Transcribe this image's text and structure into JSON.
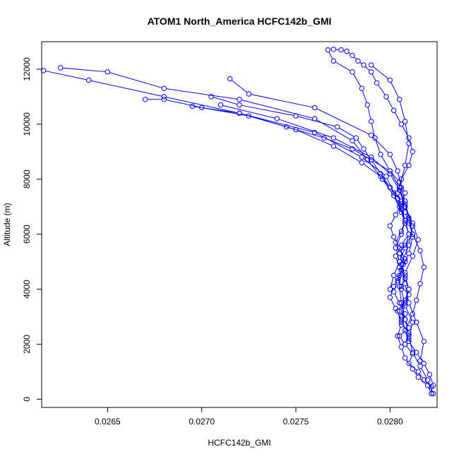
{
  "chart_data": {
    "type": "line",
    "title": "ATOM1 North_America HCFC142b_GMI",
    "xlabel": "HCFC142b_GMI",
    "ylabel": "Altitude (m)",
    "xlim": [
      0.02615,
      0.02825
    ],
    "ylim": [
      -300,
      13000
    ],
    "x_ticks": [
      0.0265,
      0.027,
      0.0275,
      0.028
    ],
    "x_tick_labels": [
      "0.0265",
      "0.0270",
      "0.0275",
      "0.0280"
    ],
    "y_ticks": [
      0,
      2000,
      4000,
      6000,
      8000,
      10000,
      12000
    ],
    "y_tick_labels": [
      "0",
      "2000",
      "4000",
      "6000",
      "8000",
      "10000",
      "12000"
    ],
    "grid": false,
    "marker": "open-circle",
    "line_style": "solid",
    "color": "#0000ff",
    "series": [
      {
        "x": [
          0.02822,
          0.02822,
          0.02818,
          0.02815,
          0.0281,
          0.02812,
          0.02808,
          0.02805,
          0.0281,
          0.02808,
          0.02805,
          0.02808,
          0.0281,
          0.02806,
          0.02804,
          0.02806,
          0.02808,
          0.02805,
          0.02808,
          0.02812,
          0.0281,
          0.02808,
          0.02806,
          0.028,
          0.02795,
          0.0279,
          0.02786,
          0.02782,
          0.02772,
          0.0275,
          0.0272,
          0.02705
        ],
        "y": [
          200,
          450,
          700,
          1000,
          1300,
          1650,
          2000,
          2300,
          2600,
          2900,
          3200,
          3500,
          3800,
          4100,
          4400,
          4700,
          5000,
          5300,
          5600,
          6000,
          6400,
          6800,
          7200,
          7700,
          8200,
          8700,
          9100,
          9500,
          9900,
          10300,
          10700,
          11000
        ]
      },
      {
        "x": [
          0.02822,
          0.0282,
          0.02815,
          0.02812,
          0.02808,
          0.02806,
          0.02804,
          0.02806,
          0.02808,
          0.02805,
          0.02802,
          0.02804,
          0.02806,
          0.02808,
          0.02805,
          0.02802,
          0.028,
          0.02803,
          0.02806,
          0.02808,
          0.02805,
          0.028,
          0.0279,
          0.0278,
          0.02765,
          0.02745,
          0.02725,
          0.027,
          0.0268,
          0.0267
        ],
        "y": [
          200,
          500,
          800,
          1100,
          1500,
          1900,
          2300,
          2700,
          3100,
          3500,
          3900,
          4300,
          4700,
          5100,
          5500,
          5900,
          6300,
          6700,
          7100,
          7500,
          7900,
          8300,
          8700,
          9100,
          9500,
          9900,
          10300,
          10600,
          10900,
          10900
        ]
      },
      {
        "x": [
          0.02823,
          0.02821,
          0.02818,
          0.02814,
          0.0281,
          0.02808,
          0.02806,
          0.02803,
          0.028,
          0.02802,
          0.02805,
          0.02807,
          0.02805,
          0.02803,
          0.02806,
          0.02808,
          0.02806,
          0.02804,
          0.028,
          0.02795,
          0.02785,
          0.0277,
          0.0275,
          0.0272,
          0.0268,
          0.0264,
          0.02616
        ],
        "y": [
          500,
          900,
          1300,
          1700,
          2100,
          2500,
          2900,
          3300,
          3700,
          4100,
          4500,
          4900,
          5300,
          5700,
          6100,
          6500,
          6900,
          7300,
          7700,
          8100,
          8600,
          9200,
          9800,
          10400,
          11000,
          11600,
          11950
        ]
      },
      {
        "x": [
          0.02808,
          0.0281,
          0.02806,
          0.02804,
          0.02808,
          0.0281,
          0.02808,
          0.02805,
          0.02803,
          0.02806,
          0.0281,
          0.02808,
          0.02806,
          0.02802,
          0.02796,
          0.02788,
          0.0278,
          0.0276,
          0.0272,
          0.0268,
          0.0265,
          0.02625
        ],
        "y": [
          2000,
          2400,
          2800,
          3200,
          3600,
          4000,
          4400,
          4800,
          5200,
          5600,
          6000,
          6400,
          6800,
          7400,
          8000,
          8700,
          9400,
          10200,
          10900,
          11300,
          11900,
          12050
        ]
      },
      {
        "x": [
          0.0281,
          0.02812,
          0.02808,
          0.02806,
          0.02808,
          0.02812,
          0.02815,
          0.02812,
          0.02808,
          0.02805,
          0.028,
          0.0279,
          0.0277,
          0.0274,
          0.0271
        ],
        "y": [
          2200,
          2800,
          3400,
          4000,
          4600,
          5200,
          5800,
          6400,
          7000,
          7600,
          8200,
          8800,
          9500,
          10200,
          10700
        ]
      },
      {
        "x": [
          0.02806,
          0.02808,
          0.0281,
          0.02808,
          0.02805,
          0.02803,
          0.02806,
          0.02808,
          0.02805,
          0.02802,
          0.02798,
          0.02785,
          0.0276,
          0.0272,
          0.02695
        ],
        "y": [
          3000,
          3500,
          4000,
          4500,
          5000,
          5500,
          6000,
          6500,
          7000,
          7500,
          8100,
          8800,
          9700,
          10400,
          10650
        ]
      },
      {
        "x": [
          0.02808,
          0.02812,
          0.02814,
          0.02816,
          0.02818,
          0.02816,
          0.02812,
          0.0281,
          0.02808,
          0.02806,
          0.02804,
          0.028,
          0.0279,
          0.0276,
          0.02725,
          0.02715
        ],
        "y": [
          2500,
          3100,
          3600,
          4200,
          4800,
          5400,
          6000,
          6600,
          7200,
          7700,
          8300,
          8900,
          9600,
          10600,
          11100,
          11650
        ]
      },
      {
        "x": [
          0.02823,
          0.0282,
          0.02816,
          0.02812,
          0.0281,
          0.02808,
          0.02806,
          0.02805,
          0.02806,
          0.0281,
          0.02812,
          0.0281,
          0.02808,
          0.02805,
          0.028,
          0.02795,
          0.02792,
          0.0279,
          0.02788,
          0.02785,
          0.0278,
          0.0277,
          0.02767
        ],
        "y": [
          200,
          700,
          1200,
          1700,
          2300,
          2900,
          3500,
          4100,
          4700,
          5300,
          5900,
          6500,
          7100,
          7700,
          8300,
          8900,
          9500,
          10100,
          10700,
          11300,
          11900,
          12300,
          12700
        ]
      },
      {
        "x": [
          0.02816,
          0.02818,
          0.02814,
          0.0281,
          0.02808,
          0.02806,
          0.0281,
          0.02812,
          0.02808,
          0.02805,
          0.02808,
          0.0281,
          0.02808,
          0.02805,
          0.028,
          0.0279
        ],
        "y": [
          1400,
          2100,
          2800,
          3500,
          4200,
          4900,
          5600,
          6300,
          7000,
          7700,
          8500,
          9300,
          10100,
          10900,
          11600,
          12150
        ]
      },
      {
        "x": [
          0.028,
          0.02802,
          0.02805,
          0.02808,
          0.0281,
          0.02808,
          0.02806,
          0.02804,
          0.02806,
          0.0281,
          0.02812,
          0.0281,
          0.02806,
          0.02802,
          0.02798,
          0.02793,
          0.0279,
          0.02786,
          0.02783,
          0.0278,
          0.02777,
          0.02774,
          0.0277
        ],
        "y": [
          4000,
          4500,
          5000,
          5500,
          6000,
          6500,
          7000,
          7500,
          8000,
          8500,
          9000,
          9500,
          10000,
          10500,
          11000,
          11500,
          11900,
          12150,
          12300,
          12500,
          12650,
          12700,
          12720
        ]
      }
    ]
  }
}
